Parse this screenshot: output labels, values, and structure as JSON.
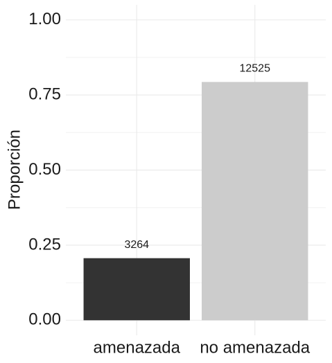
{
  "chart_data": {
    "type": "bar",
    "y_label": "Proporción",
    "categories": [
      "amenazada",
      "no amenazada"
    ],
    "values": [
      0.2067,
      0.7933
    ],
    "counts": [
      3264,
      12525
    ],
    "colors": [
      "#333333",
      "#cccccc"
    ],
    "ylim": [
      -0.05,
      1.05
    ],
    "yticks": [
      {
        "value": 0,
        "label": "0.00"
      },
      {
        "value": 0.25,
        "label": "0.25"
      },
      {
        "value": 0.5,
        "label": "0.50"
      },
      {
        "value": 0.75,
        "label": "0.75"
      },
      {
        "value": 1,
        "label": "1.00"
      }
    ],
    "yminor": [
      0.125,
      0.375,
      0.625,
      0.875
    ],
    "grid": true
  }
}
